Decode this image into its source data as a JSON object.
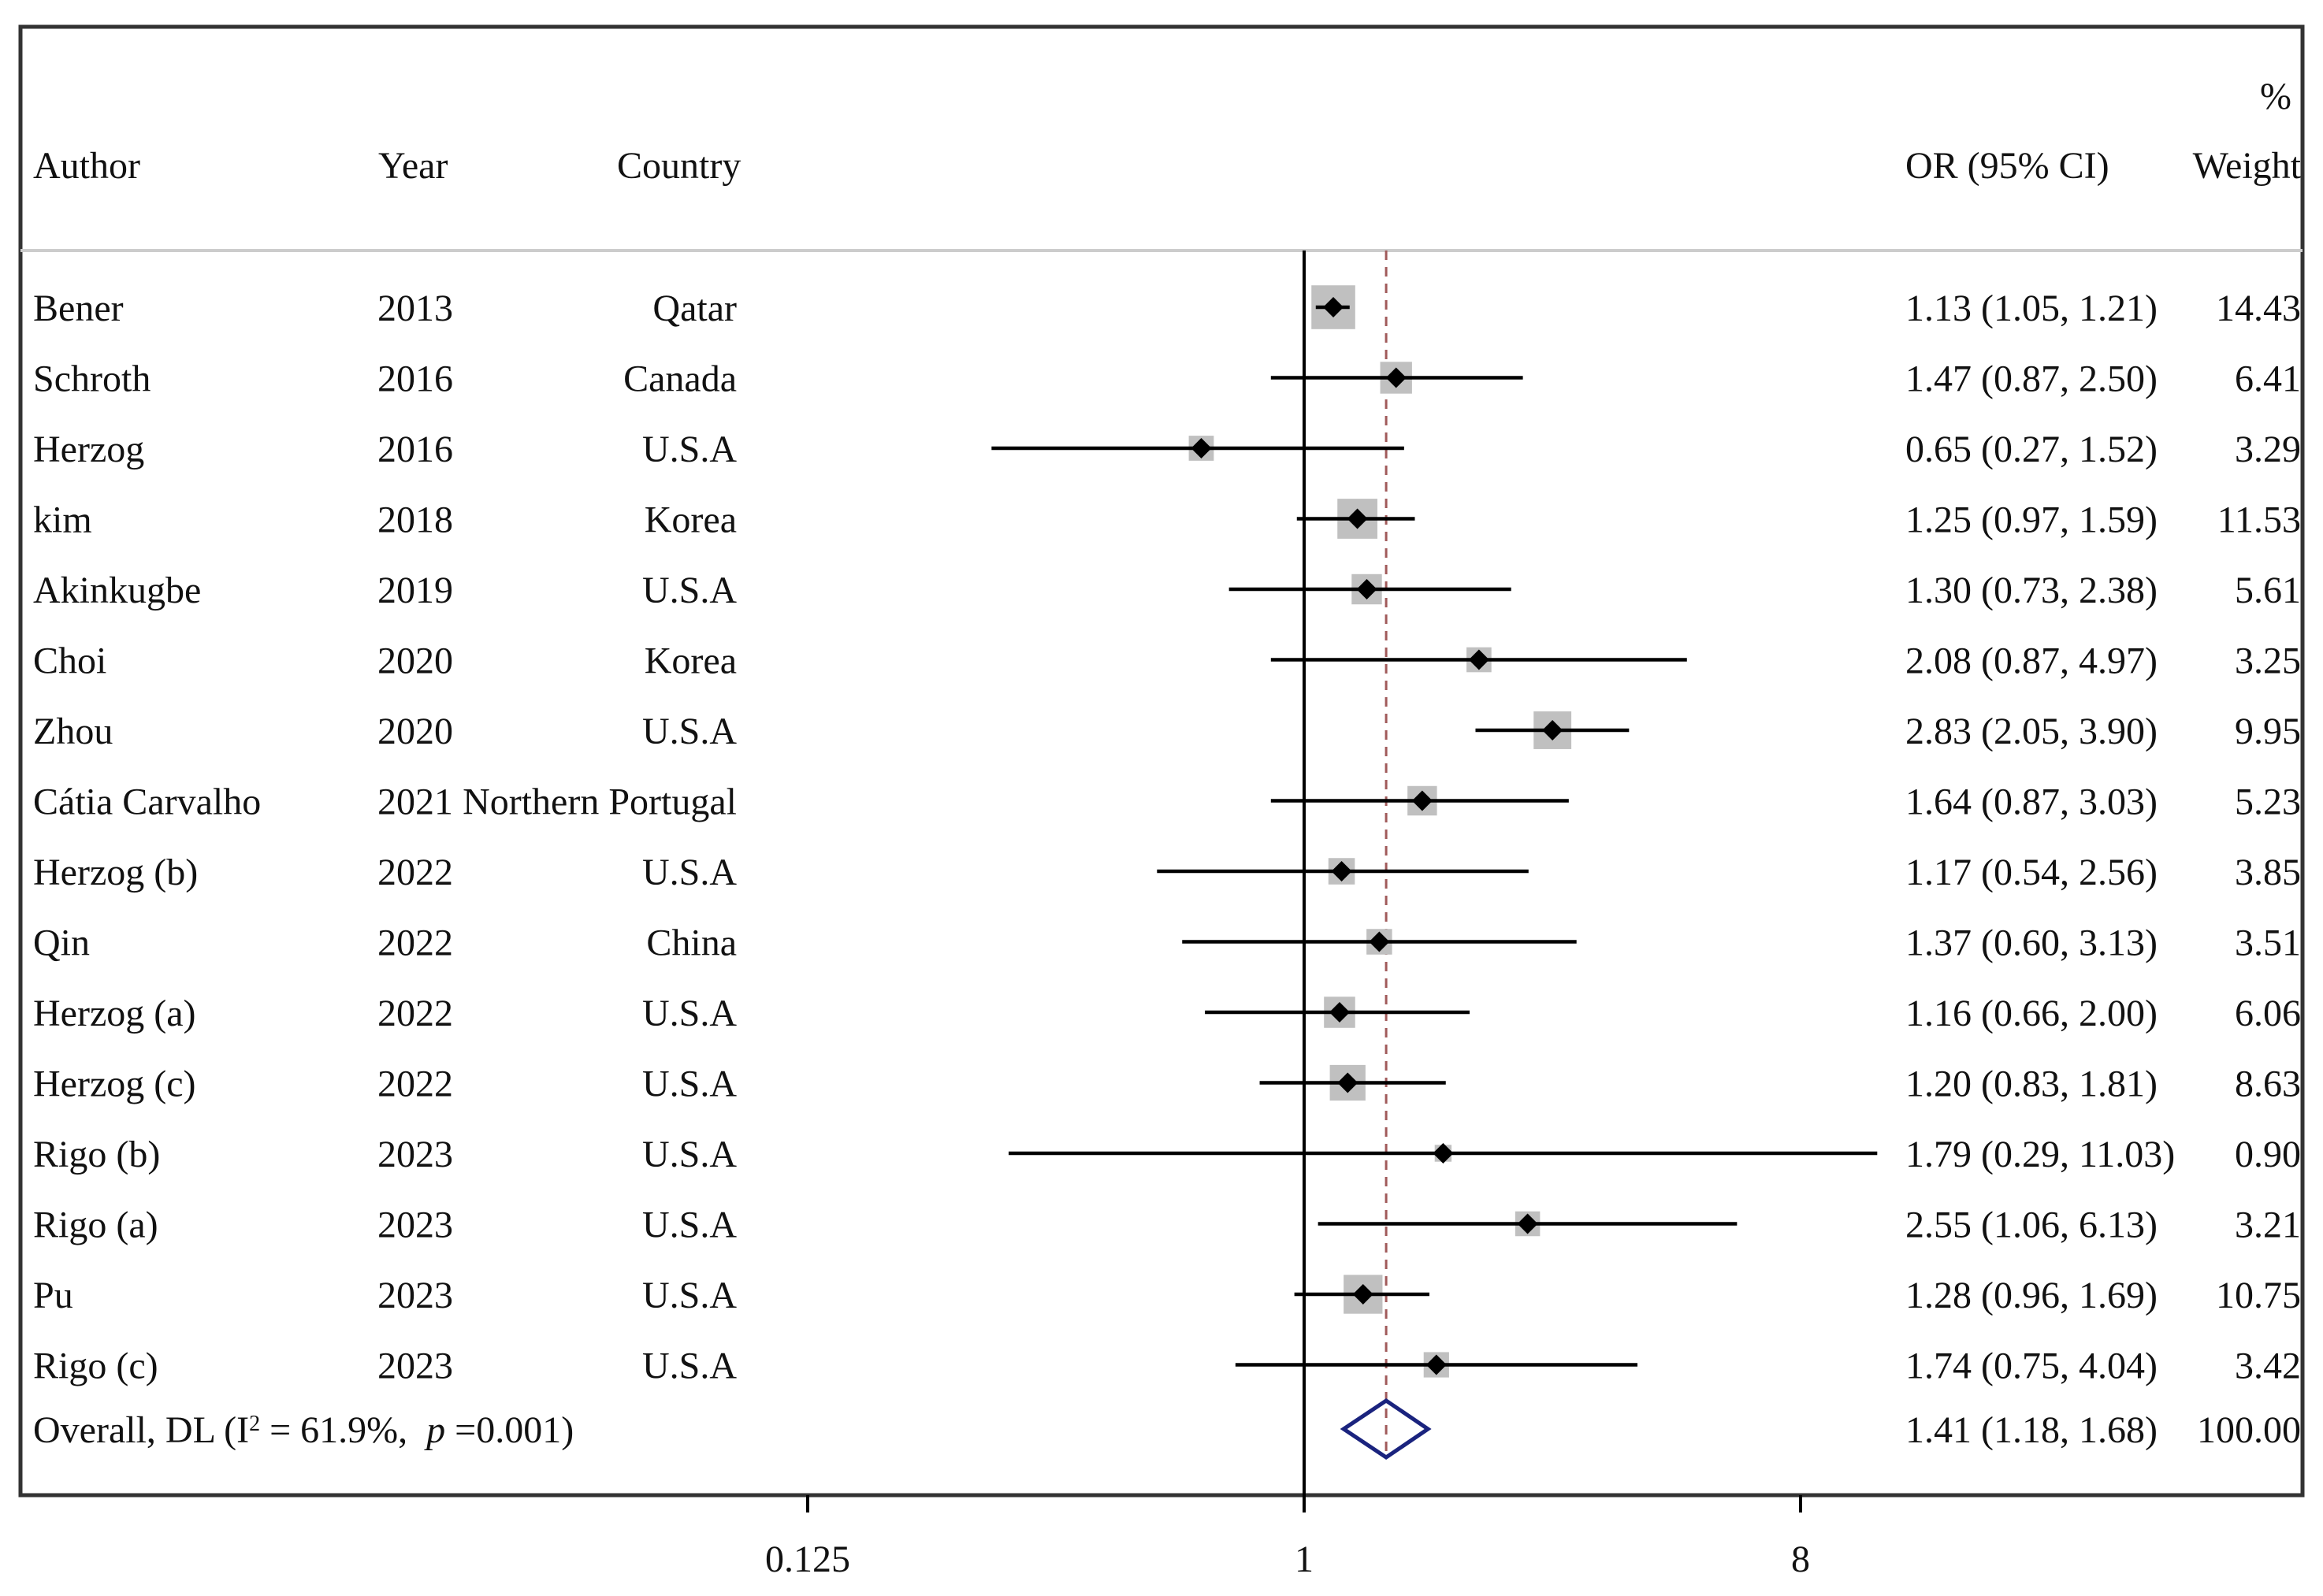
{
  "chart_data": {
    "type": "forest",
    "measure": "OR (95% CI)",
    "x_scale": "log2",
    "xlim": [
      0.0625,
      16
    ],
    "x_ticks": [
      {
        "value": 0.125,
        "label": "0.125"
      },
      {
        "value": 1,
        "label": "1"
      },
      {
        "value": 8,
        "label": "8"
      }
    ],
    "null_line": 1,
    "pooled_line": 1.41,
    "columns": {
      "author": "Author",
      "year": "Year",
      "country": "Country",
      "or_ci": "OR (95% CI)",
      "weight_top": "%",
      "weight": "Weight"
    },
    "studies": [
      {
        "author": "Bener",
        "year": "2013",
        "country": "Qatar",
        "or": 1.13,
        "lower": 1.05,
        "upper": 1.21,
        "or_text": "1.13 (1.05, 1.21)",
        "weight": 14.43,
        "weight_text": "14.43"
      },
      {
        "author": "Schroth",
        "year": "2016",
        "country": "Canada",
        "or": 1.47,
        "lower": 0.87,
        "upper": 2.5,
        "or_text": "1.47 (0.87, 2.50)",
        "weight": 6.41,
        "weight_text": "6.41"
      },
      {
        "author": "Herzog",
        "year": "2016",
        "country": "U.S.A",
        "or": 0.65,
        "lower": 0.27,
        "upper": 1.52,
        "or_text": "0.65 (0.27, 1.52)",
        "weight": 3.29,
        "weight_text": "3.29"
      },
      {
        "author": "kim",
        "year": "2018",
        "country": "Korea",
        "or": 1.25,
        "lower": 0.97,
        "upper": 1.59,
        "or_text": "1.25 (0.97, 1.59)",
        "weight": 11.53,
        "weight_text": "11.53"
      },
      {
        "author": "Akinkugbe",
        "year": "2019",
        "country": "U.S.A",
        "or": 1.3,
        "lower": 0.73,
        "upper": 2.38,
        "or_text": "1.30 (0.73, 2.38)",
        "weight": 5.61,
        "weight_text": "5.61"
      },
      {
        "author": "Choi",
        "year": "2020",
        "country": "Korea",
        "or": 2.08,
        "lower": 0.87,
        "upper": 4.97,
        "or_text": "2.08 (0.87, 4.97)",
        "weight": 3.25,
        "weight_text": "3.25"
      },
      {
        "author": "Zhou",
        "year": "2020",
        "country": "U.S.A",
        "or": 2.83,
        "lower": 2.05,
        "upper": 3.9,
        "or_text": "2.83 (2.05, 3.90)",
        "weight": 9.95,
        "weight_text": "9.95"
      },
      {
        "author": "Cátia Carvalho",
        "year": "2021",
        "country": "Northern Portugal",
        "or": 1.64,
        "lower": 0.87,
        "upper": 3.03,
        "or_text": "1.64 (0.87, 3.03)",
        "weight": 5.23,
        "weight_text": "5.23"
      },
      {
        "author": "Herzog (b)",
        "year": "2022",
        "country": "U.S.A",
        "or": 1.17,
        "lower": 0.54,
        "upper": 2.56,
        "or_text": "1.17 (0.54, 2.56)",
        "weight": 3.85,
        "weight_text": "3.85"
      },
      {
        "author": "Qin",
        "year": "2022",
        "country": "China",
        "or": 1.37,
        "lower": 0.6,
        "upper": 3.13,
        "or_text": "1.37 (0.60, 3.13)",
        "weight": 3.51,
        "weight_text": "3.51"
      },
      {
        "author": "Herzog (a)",
        "year": "2022",
        "country": "U.S.A",
        "or": 1.16,
        "lower": 0.66,
        "upper": 2.0,
        "or_text": "1.16 (0.66, 2.00)",
        "weight": 6.06,
        "weight_text": "6.06"
      },
      {
        "author": "Herzog (c)",
        "year": "2022",
        "country": "U.S.A",
        "or": 1.2,
        "lower": 0.83,
        "upper": 1.81,
        "or_text": "1.20 (0.83, 1.81)",
        "weight": 8.63,
        "weight_text": "8.63"
      },
      {
        "author": "Rigo (b)",
        "year": "2023",
        "country": "U.S.A",
        "or": 1.79,
        "lower": 0.29,
        "upper": 11.03,
        "or_text": "1.79 (0.29, 11.03)",
        "weight": 0.9,
        "weight_text": "0.90"
      },
      {
        "author": "Rigo (a)",
        "year": "2023",
        "country": "U.S.A",
        "or": 2.55,
        "lower": 1.06,
        "upper": 6.13,
        "or_text": "2.55 (1.06, 6.13)",
        "weight": 3.21,
        "weight_text": "3.21"
      },
      {
        "author": "Pu",
        "year": "2023",
        "country": "U.S.A",
        "or": 1.28,
        "lower": 0.96,
        "upper": 1.69,
        "or_text": "1.28 (0.96, 1.69)",
        "weight": 10.75,
        "weight_text": "10.75"
      },
      {
        "author": "Rigo (c)",
        "year": "2023",
        "country": "U.S.A",
        "or": 1.74,
        "lower": 0.75,
        "upper": 4.04,
        "or_text": "1.74 (0.75, 4.04)",
        "weight": 3.42,
        "weight_text": "3.42"
      }
    ],
    "overall": {
      "label_prefix": "Overall, DL (I",
      "label_sup": "2",
      "label_mid": " = 61.9%,",
      "label_p": "p",
      "label_end": "=0.001)",
      "i2": "61.9%",
      "p_value": "0.001",
      "or": 1.41,
      "lower": 1.18,
      "upper": 1.68,
      "or_text": "1.41 (1.18, 1.68)",
      "weight_text": "100.00"
    },
    "colors": {
      "box": "#c0c0c0",
      "line": "#000000",
      "pooled_line": "#a05a5a",
      "diamond": "#1a237e",
      "frame": "#333333",
      "separator": "#cccccc"
    }
  }
}
